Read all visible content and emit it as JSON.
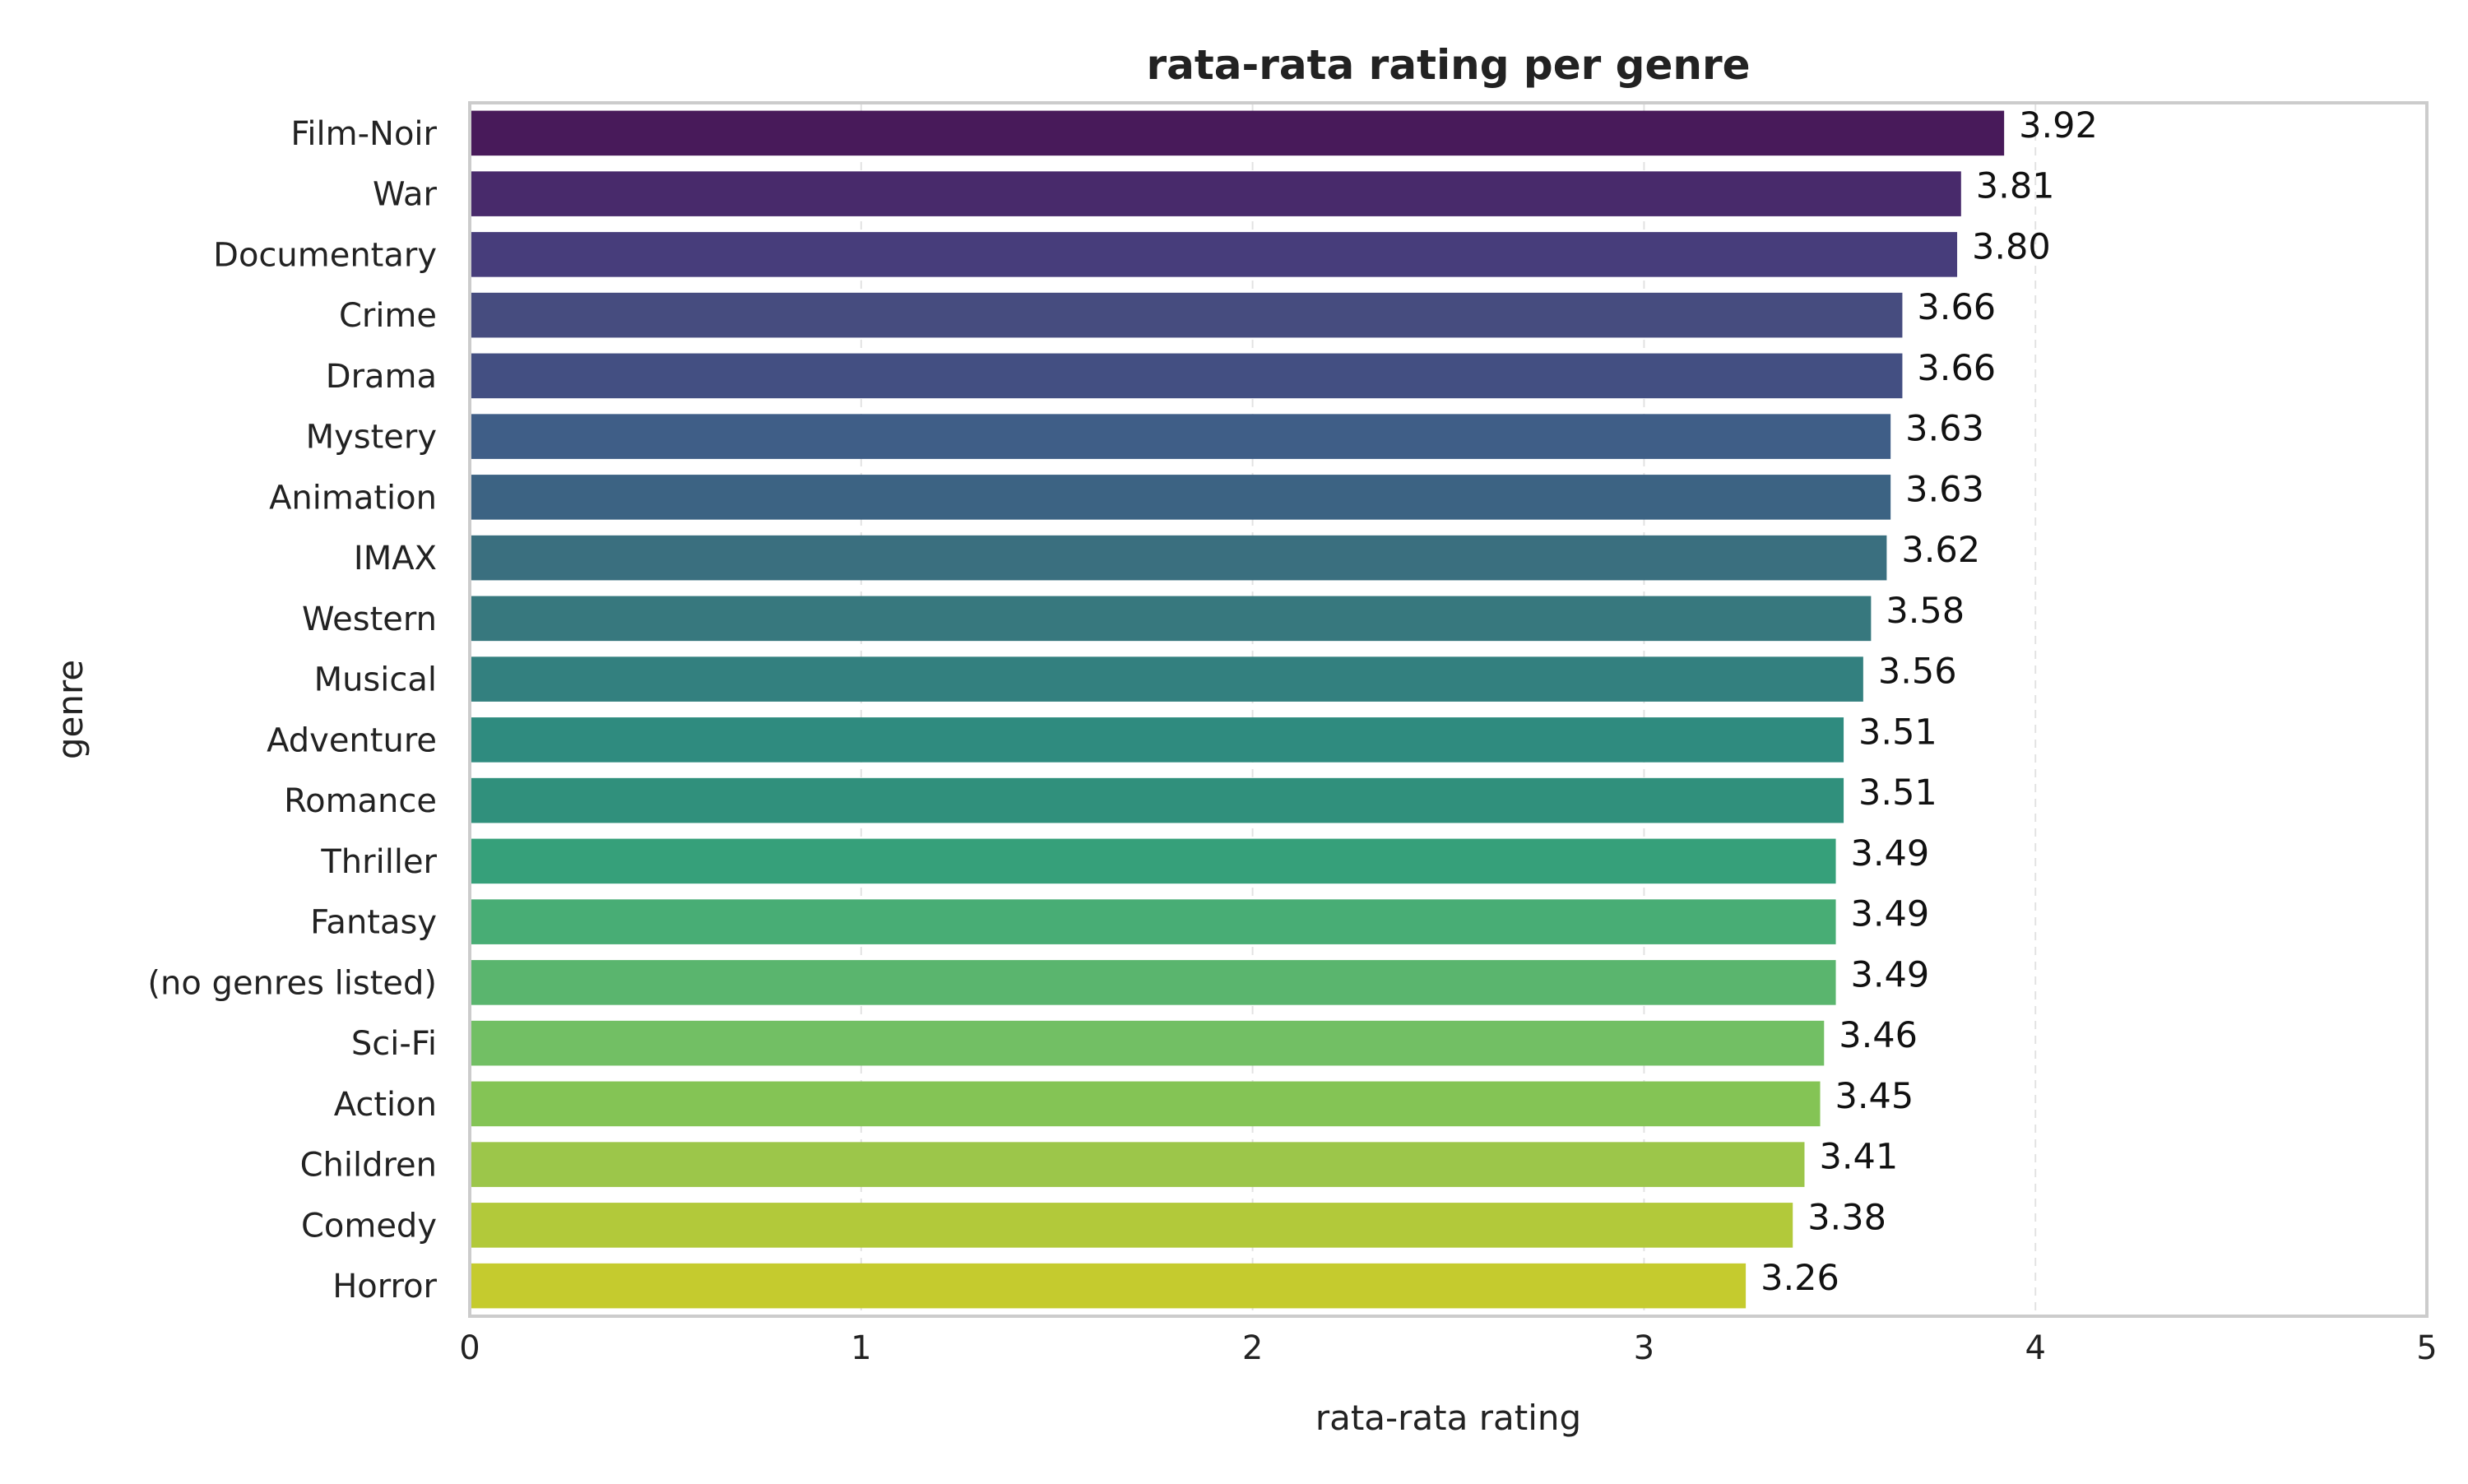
{
  "chart_data": {
    "type": "bar",
    "orientation": "horizontal",
    "title": "rata-rata rating per genre",
    "xlabel": "rata-rata rating",
    "ylabel": "genre",
    "xlim": [
      0,
      5
    ],
    "xticks": [
      "0",
      "1",
      "2",
      "3",
      "4",
      "5"
    ],
    "grid": "vertical dashed",
    "categories": [
      "Film-Noir",
      "War",
      "Documentary",
      "Crime",
      "Drama",
      "Mystery",
      "Animation",
      "IMAX",
      "Western",
      "Musical",
      "Adventure",
      "Romance",
      "Thriller",
      "Fantasy",
      "(no genres listed)",
      "Sci-Fi",
      "Action",
      "Children",
      "Comedy",
      "Horror"
    ],
    "values": [
      3.92,
      3.81,
      3.8,
      3.66,
      3.66,
      3.63,
      3.63,
      3.62,
      3.58,
      3.56,
      3.51,
      3.51,
      3.49,
      3.49,
      3.49,
      3.46,
      3.45,
      3.41,
      3.38,
      3.26
    ],
    "value_labels": [
      "3.92",
      "3.81",
      "3.80",
      "3.66",
      "3.66",
      "3.63",
      "3.63",
      "3.62",
      "3.58",
      "3.56",
      "3.51",
      "3.51",
      "3.49",
      "3.49",
      "3.49",
      "3.46",
      "3.45",
      "3.41",
      "3.38",
      "3.26"
    ],
    "colors": [
      "#481a5a",
      "#482a6b",
      "#473d7b",
      "#464c7f",
      "#434f82",
      "#3f5e87",
      "#3c6383",
      "#3a6f7f",
      "#37787e",
      "#33807f",
      "#2f8b7f",
      "#30907c",
      "#36a07a",
      "#48ad75",
      "#5ab56e",
      "#72bf64",
      "#84c455",
      "#9cc64a",
      "#b2c93a",
      "#c5cb2e"
    ]
  }
}
